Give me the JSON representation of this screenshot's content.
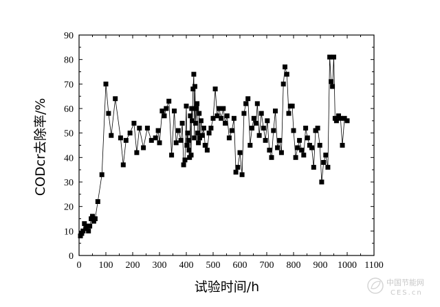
{
  "chart_data": {
    "type": "line",
    "title": "",
    "xlabel": "试验时间/h",
    "ylabel": "CODcr去除率/%",
    "xlim": [
      0,
      1100
    ],
    "ylim": [
      0,
      90
    ],
    "xticks": [
      0,
      100,
      200,
      300,
      400,
      500,
      600,
      700,
      800,
      900,
      1000,
      1100
    ],
    "yticks": [
      0,
      10,
      20,
      30,
      40,
      50,
      60,
      70,
      80,
      90
    ],
    "grid": false,
    "legend": "none",
    "marker": "square",
    "color": "#000000",
    "series": [
      {
        "x": [
          5,
          10,
          15,
          20,
          25,
          30,
          35,
          40,
          45,
          50,
          55,
          60,
          70,
          85,
          100,
          110,
          120,
          135,
          155,
          165,
          175,
          190,
          205,
          215,
          225,
          240,
          255,
          270,
          285,
          295,
          300,
          310,
          318,
          325,
          335,
          345,
          355,
          362,
          370,
          380,
          385,
          390,
          395,
          400,
          402,
          405,
          408,
          410,
          412,
          415,
          418,
          420,
          422,
          425,
          428,
          430,
          432,
          435,
          438,
          440,
          442,
          445,
          448,
          450,
          455,
          460,
          465,
          470,
          478,
          485,
          492,
          500,
          508,
          515,
          522,
          530,
          538,
          545,
          552,
          560,
          570,
          578,
          585,
          592,
          600,
          608,
          615,
          622,
          630,
          638,
          645,
          652,
          660,
          665,
          672,
          680,
          688,
          695,
          702,
          710,
          718,
          725,
          732,
          740,
          748,
          755,
          762,
          768,
          775,
          782,
          788,
          795,
          800,
          808,
          815,
          822,
          830,
          838,
          845,
          852,
          860,
          868,
          875,
          882,
          890,
          898,
          905,
          912,
          920,
          928,
          935,
          940,
          945,
          950,
          955,
          960,
          968,
          975,
          982,
          990,
          1000
        ],
        "y": [
          8,
          9,
          10,
          13,
          11,
          12,
          10,
          12,
          15,
          16,
          14,
          15,
          22,
          33,
          70,
          58,
          49,
          64,
          48,
          37,
          47,
          50,
          54,
          42,
          52,
          44,
          52,
          47,
          48,
          51,
          46,
          59,
          57,
          60,
          63,
          41,
          59,
          46,
          51,
          47,
          54,
          37,
          39,
          61,
          45,
          50,
          47,
          43,
          40,
          57,
          41,
          60,
          55,
          68,
          74,
          48,
          69,
          54,
          60,
          62,
          50,
          46,
          58,
          48,
          55,
          49,
          52,
          45,
          43,
          50,
          52,
          56,
          68,
          57,
          60,
          56,
          60,
          54,
          57,
          48,
          51,
          56,
          34,
          36,
          42,
          33,
          58,
          62,
          64,
          45,
          52,
          56,
          54,
          62,
          49,
          58,
          52,
          47,
          55,
          43,
          40,
          51,
          59,
          44,
          47,
          42,
          70,
          77,
          74,
          58,
          61,
          61,
          51,
          40,
          44,
          47,
          43,
          41,
          52,
          48,
          45,
          44,
          36,
          51,
          52,
          45,
          30,
          38,
          41,
          36,
          81,
          71,
          69,
          81,
          56,
          55,
          57,
          56,
          45,
          56,
          55
        ]
      }
    ]
  },
  "watermark": {
    "text_cn": "中国节能网",
    "text_en": "CES.cn",
    "icon": "leaf-logo-icon"
  }
}
